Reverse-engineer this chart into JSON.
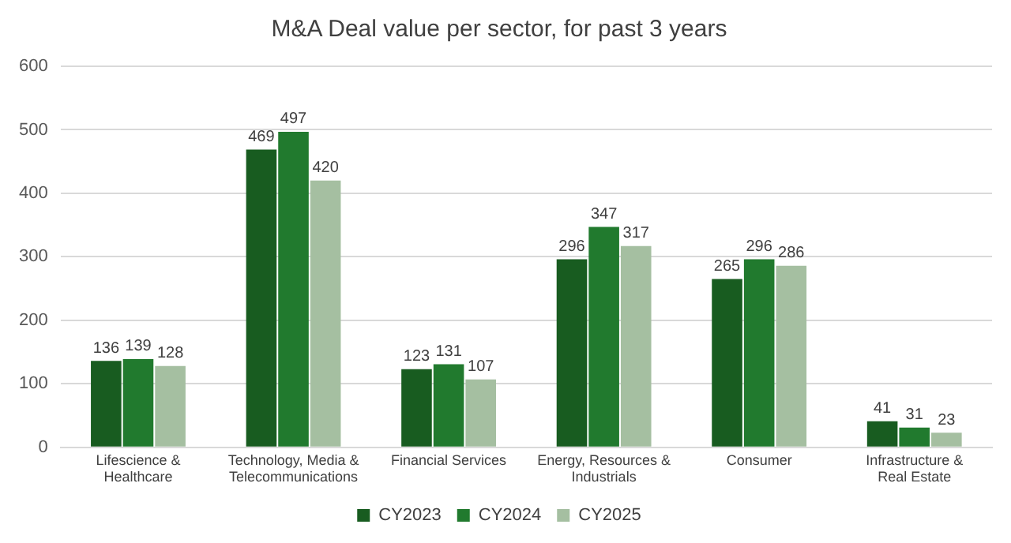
{
  "chart_data": {
    "type": "bar",
    "title": "M&A Deal value per sector, for past 3 years",
    "categories": [
      "Lifescience & Healthcare",
      "Technology, Media & Telecommunications",
      "Financial Services",
      "Energy, Resources & Industrials",
      "Consumer",
      "Infrastructure & Real Estate"
    ],
    "series": [
      {
        "name": "CY2023",
        "color": "#185c20",
        "values": [
          136,
          469,
          123,
          296,
          265,
          41
        ]
      },
      {
        "name": "CY2024",
        "color": "#217a2e",
        "values": [
          139,
          497,
          131,
          347,
          296,
          31
        ]
      },
      {
        "name": "CY2025",
        "color": "#a5bfa1",
        "values": [
          128,
          420,
          107,
          317,
          286,
          23
        ]
      }
    ],
    "ylim": [
      0,
      600
    ],
    "yticks": [
      0,
      100,
      200,
      300,
      400,
      500,
      600
    ],
    "grid": "y",
    "legend": "bottom",
    "data_labels": true
  }
}
